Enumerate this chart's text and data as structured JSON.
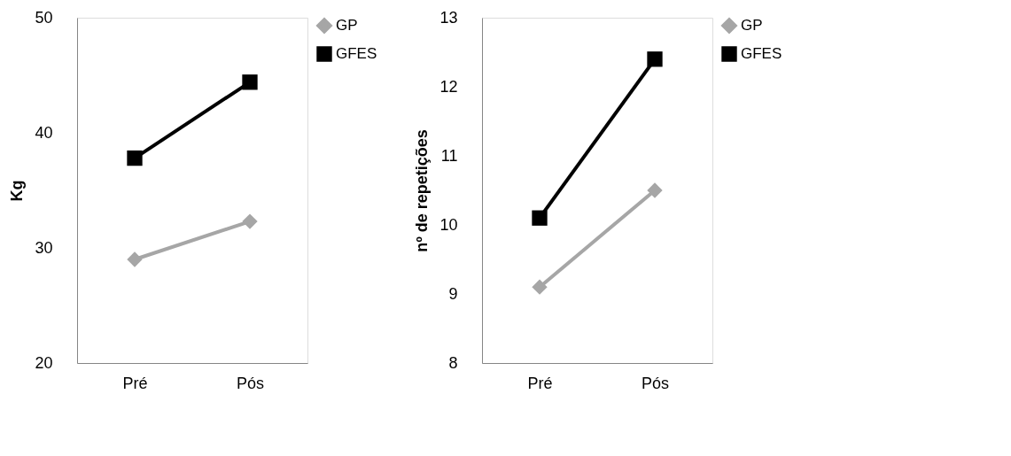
{
  "chart_data": [
    {
      "type": "line",
      "ylabel": "Kg",
      "categories": [
        "Pré",
        "Pós"
      ],
      "ylim": [
        20,
        50
      ],
      "yticks": [
        20,
        30,
        40,
        50
      ],
      "grid": false,
      "legend": "right",
      "series": [
        {
          "name": "GP",
          "color": "#a6a6a6",
          "marker": "diamond",
          "values": [
            29.0,
            32.3
          ]
        },
        {
          "name": "GFES",
          "color": "#000000",
          "marker": "square",
          "values": [
            37.8,
            44.4
          ]
        }
      ]
    },
    {
      "type": "line",
      "ylabel": "nº de repetições",
      "categories": [
        "Pré",
        "Pós"
      ],
      "ylim": [
        8,
        13
      ],
      "yticks": [
        8,
        9,
        10,
        11,
        12,
        13
      ],
      "grid": false,
      "legend": "right",
      "series": [
        {
          "name": "GP",
          "color": "#a6a6a6",
          "marker": "diamond",
          "values": [
            9.1,
            10.5
          ]
        },
        {
          "name": "GFES",
          "color": "#000000",
          "marker": "square",
          "values": [
            10.1,
            12.4
          ]
        }
      ]
    }
  ]
}
